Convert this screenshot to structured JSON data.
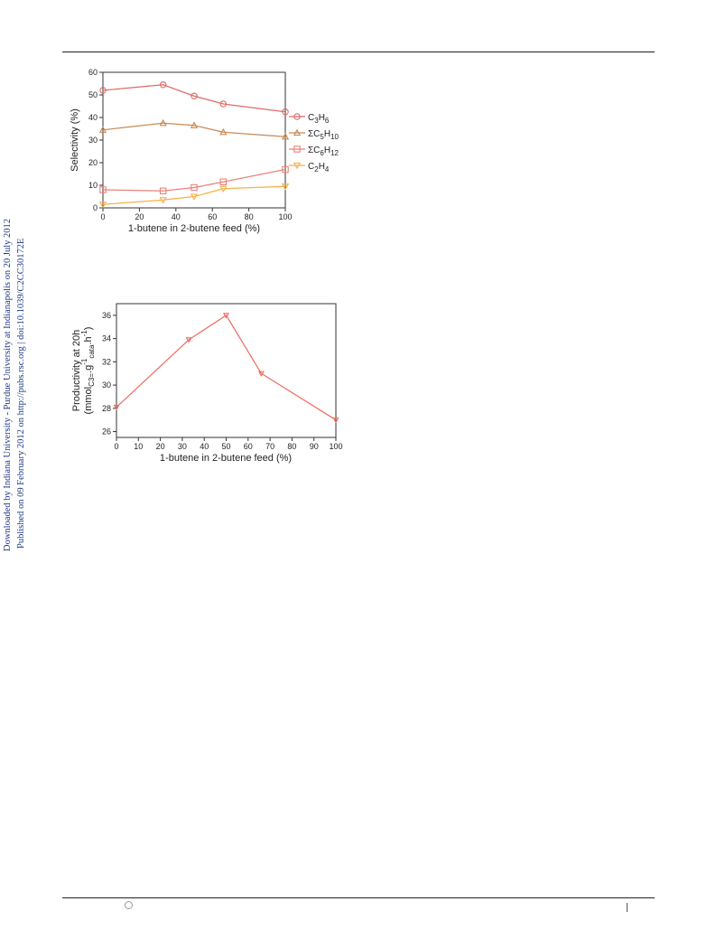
{
  "side_notes": {
    "line1": "Downloaded by Indiana University - Purdue University at Indianapolis on 20 July 2012",
    "line2": "Published on 09 February 2012 on http://pubs.rsc.org | doi:10.1039/C2CC30172E"
  },
  "colors": {
    "c3h6": "#dd6a66",
    "c5h10": "#c98a55",
    "c6h12": "#e8827a",
    "c2h4": "#f5b04a",
    "productivity": "#ef6b62"
  },
  "chart_data": [
    {
      "type": "line",
      "xlabel": "1-butene in 2-butene feed (%)",
      "ylabel": "Selectivity (%)",
      "xlim": [
        0,
        100
      ],
      "ylim": [
        0,
        60
      ],
      "xticks": [
        "0",
        "20",
        "40",
        "60",
        "80",
        "100"
      ],
      "yticks": [
        "0",
        "10",
        "20",
        "30",
        "40",
        "50",
        "60"
      ],
      "legend_position": "right",
      "x": [
        0,
        33,
        50,
        66,
        100
      ],
      "series": [
        {
          "name": "C3H6",
          "name_base": "C",
          "sub1": "3",
          "mid": "H",
          "sub2": "6",
          "marker": "circle",
          "values": [
            52,
            54.5,
            49.5,
            46,
            42.5
          ]
        },
        {
          "name": "ΣC5H10",
          "name_base": "ΣC",
          "sub1": "5",
          "mid": "H",
          "sub2": "10",
          "marker": "triangle-up",
          "values": [
            34.5,
            37.5,
            36.5,
            33.5,
            31.5
          ]
        },
        {
          "name": "ΣC6H12",
          "name_base": "ΣC",
          "sub1": "6",
          "mid": "H",
          "sub2": "12",
          "marker": "square",
          "values": [
            8,
            7.5,
            9,
            11.5,
            17
          ]
        },
        {
          "name": "C2H4",
          "name_base": "C",
          "sub1": "2",
          "mid": "H",
          "sub2": "4",
          "marker": "triangle-down",
          "values": [
            1.5,
            3.5,
            5,
            8.5,
            9.5
          ]
        }
      ]
    },
    {
      "type": "line",
      "xlabel": "1-butene in 2-butene feed (%)",
      "ylabel_line1": "Productivity at 20h",
      "ylabel_line2": "(mmol",
      "ylabel_sub": "C3=",
      "ylabel_mid": ".g",
      "ylabel_sup1": "-1",
      "ylabel_sub2": "cata",
      "ylabel_tail": ".h",
      "ylabel_sup2": "-1",
      "ylabel_end": ")",
      "xlim": [
        0,
        100
      ],
      "ylim": [
        25.5,
        37
      ],
      "xticks": [
        "0",
        "10",
        "20",
        "30",
        "40",
        "50",
        "60",
        "70",
        "80",
        "90",
        "100"
      ],
      "yticks": [
        "26",
        "28",
        "30",
        "32",
        "34",
        "36"
      ],
      "x": [
        0,
        33,
        50,
        66,
        100
      ],
      "series": [
        {
          "name": "",
          "marker": "triangle-down",
          "values": [
            28.1,
            33.9,
            36,
            31,
            27
          ]
        }
      ]
    }
  ]
}
